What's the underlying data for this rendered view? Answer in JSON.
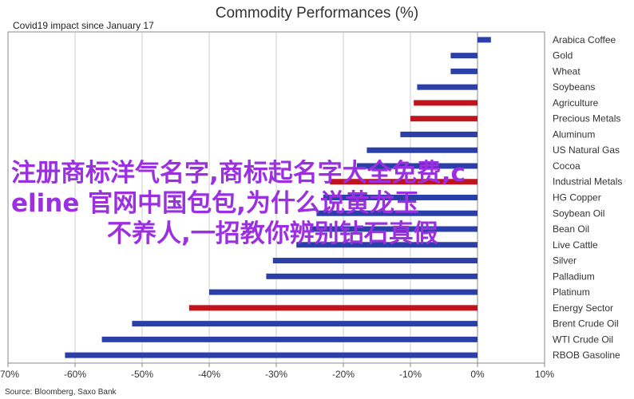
{
  "chart_data": {
    "type": "bar",
    "orientation": "horizontal",
    "title": "Commodity Performances (%)",
    "subtitle": "Covid19 impact since January 17",
    "source": "Source: Bloomberg, Saxo Bank",
    "xlim": [
      -70,
      10
    ],
    "xticks": [
      -70,
      -60,
      -50,
      -40,
      -30,
      -20,
      -10,
      0,
      10
    ],
    "xtick_labels": [
      "-70%",
      "-60%",
      "-50%",
      "-40%",
      "-30%",
      "-20%",
      "-10%",
      "0%",
      "10%"
    ],
    "grid": "vertical",
    "categories": [
      "Arabica Coffee",
      "Gold",
      "Wheat",
      "Soybeans",
      "Agriculture",
      "Precious Metals",
      "Aluminum",
      "US Natural Gas",
      "Cocoa",
      "Industrial Metals",
      "HG Copper",
      "Soybean Oil",
      "Bean Oil",
      "Live Cattle",
      "Silver",
      "Palladium",
      "Platinum",
      "Energy Sector",
      "Brent Crude Oil",
      "WTI Crude Oil",
      "RBOB Gasoline"
    ],
    "values": [
      2,
      -4,
      -4,
      -9,
      -9.5,
      -10,
      -11.5,
      -16.5,
      -18,
      -22,
      -23,
      -24,
      -25,
      -27,
      -30.5,
      -31.5,
      -40,
      -43,
      -51.5,
      -56,
      -61.5
    ],
    "highlight": [
      "Agriculture",
      "Precious Metals",
      "Industrial Metals",
      "Energy Sector"
    ],
    "colors": {
      "bar": "#2b3fa8",
      "highlight": "#c0131b",
      "grid": "#cccccc",
      "axis": "#888888"
    }
  },
  "overlay": {
    "line1": "注册商标洋气名字,商标起名字大全免费,c",
    "line2": "eline 官网中国包包,为什么说黄龙玉",
    "line3": "不养人,一招教你辨别钻石真假"
  }
}
